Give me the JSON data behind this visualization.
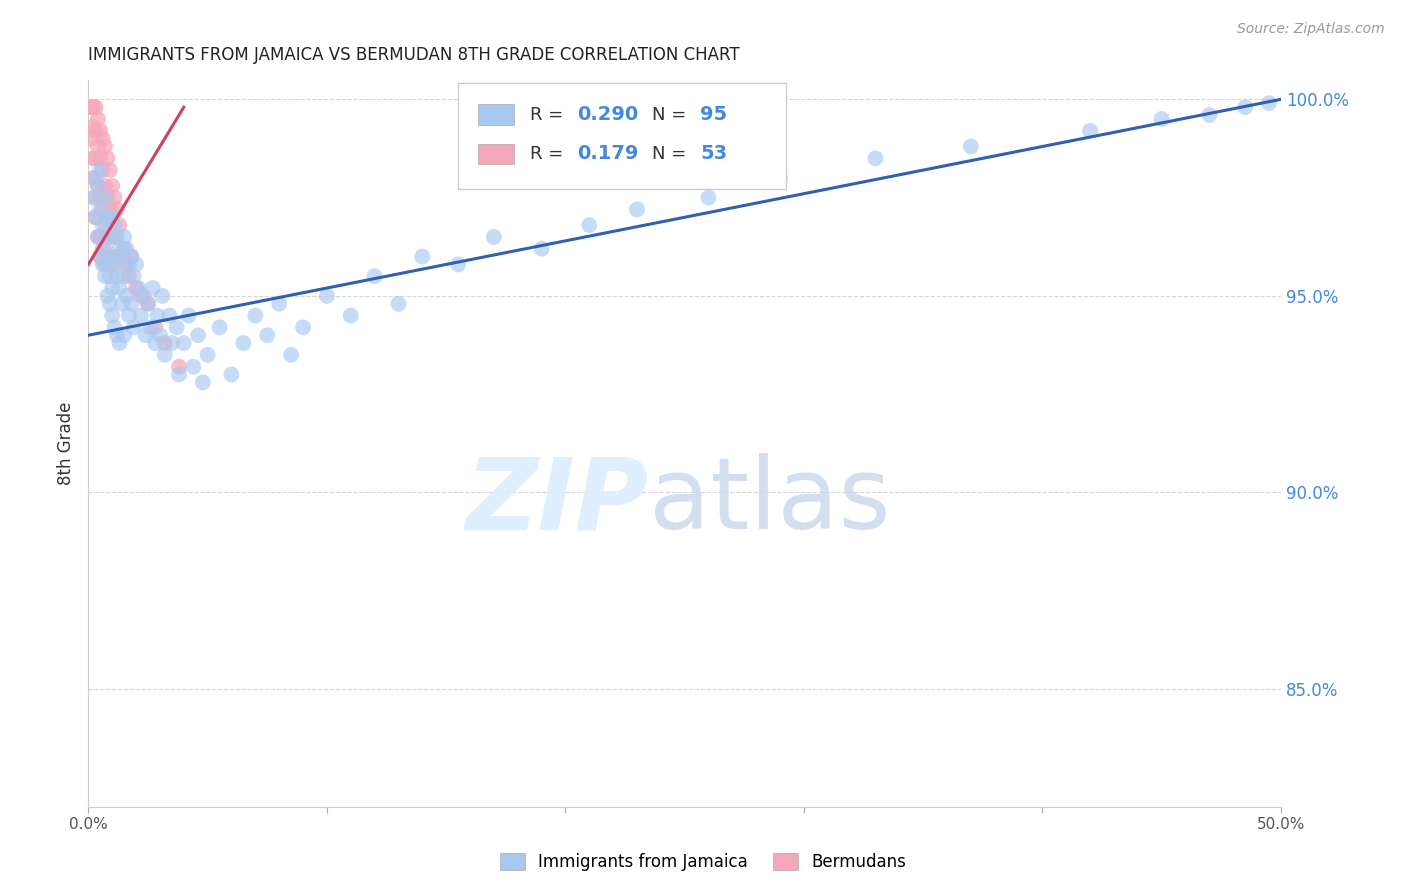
{
  "title": "IMMIGRANTS FROM JAMAICA VS BERMUDAN 8TH GRADE CORRELATION CHART",
  "source": "Source: ZipAtlas.com",
  "ylabel_label": "8th Grade",
  "x_min": 0.0,
  "x_max": 0.5,
  "y_min": 0.82,
  "y_max": 1.005,
  "x_tick_positions": [
    0.0,
    0.1,
    0.2,
    0.3,
    0.4,
    0.5
  ],
  "x_tick_labels": [
    "0.0%",
    "",
    "",
    "",
    "",
    "50.0%"
  ],
  "y_tick_positions": [
    0.85,
    0.9,
    0.95,
    1.0
  ],
  "y_tick_labels": [
    "85.0%",
    "90.0%",
    "95.0%",
    "100.0%"
  ],
  "blue_color": "#a8c8f0",
  "pink_color": "#f5a8bc",
  "blue_line_color": "#3060b0",
  "pink_line_color": "#d04060",
  "R_blue": "0.290",
  "N_blue": "95",
  "R_pink": "0.179",
  "N_pink": "53",
  "legend_label_blue": "Immigrants from Jamaica",
  "legend_label_pink": "Bermudans",
  "blue_scatter_x": [
    0.002,
    0.003,
    0.003,
    0.004,
    0.004,
    0.005,
    0.005,
    0.005,
    0.006,
    0.006,
    0.007,
    0.007,
    0.007,
    0.008,
    0.008,
    0.008,
    0.009,
    0.009,
    0.009,
    0.01,
    0.01,
    0.01,
    0.01,
    0.011,
    0.011,
    0.011,
    0.012,
    0.012,
    0.012,
    0.013,
    0.013,
    0.013,
    0.014,
    0.014,
    0.015,
    0.015,
    0.015,
    0.016,
    0.016,
    0.017,
    0.017,
    0.018,
    0.018,
    0.019,
    0.019,
    0.02,
    0.021,
    0.022,
    0.023,
    0.024,
    0.025,
    0.026,
    0.027,
    0.028,
    0.029,
    0.03,
    0.031,
    0.032,
    0.034,
    0.035,
    0.037,
    0.038,
    0.04,
    0.042,
    0.044,
    0.046,
    0.048,
    0.05,
    0.055,
    0.06,
    0.065,
    0.07,
    0.075,
    0.08,
    0.085,
    0.09,
    0.1,
    0.11,
    0.12,
    0.13,
    0.14,
    0.155,
    0.17,
    0.19,
    0.21,
    0.23,
    0.26,
    0.29,
    0.33,
    0.37,
    0.42,
    0.45,
    0.47,
    0.485,
    0.495
  ],
  "blue_scatter_y": [
    0.975,
    0.98,
    0.97,
    0.978,
    0.965,
    0.982,
    0.96,
    0.972,
    0.968,
    0.958,
    0.975,
    0.962,
    0.955,
    0.97,
    0.958,
    0.95,
    0.965,
    0.955,
    0.948,
    0.97,
    0.96,
    0.952,
    0.945,
    0.968,
    0.958,
    0.942,
    0.965,
    0.955,
    0.94,
    0.962,
    0.952,
    0.938,
    0.96,
    0.948,
    0.965,
    0.955,
    0.94,
    0.962,
    0.95,
    0.958,
    0.945,
    0.96,
    0.948,
    0.955,
    0.942,
    0.958,
    0.952,
    0.945,
    0.95,
    0.94,
    0.948,
    0.942,
    0.952,
    0.938,
    0.945,
    0.94,
    0.95,
    0.935,
    0.945,
    0.938,
    0.942,
    0.93,
    0.938,
    0.945,
    0.932,
    0.94,
    0.928,
    0.935,
    0.942,
    0.93,
    0.938,
    0.945,
    0.94,
    0.948,
    0.935,
    0.942,
    0.95,
    0.945,
    0.955,
    0.948,
    0.96,
    0.958,
    0.965,
    0.962,
    0.968,
    0.972,
    0.975,
    0.98,
    0.985,
    0.988,
    0.992,
    0.995,
    0.996,
    0.998,
    0.999
  ],
  "blue_line_x": [
    0.0,
    0.5
  ],
  "blue_line_y": [
    0.94,
    1.0
  ],
  "pink_scatter_x": [
    0.001,
    0.001,
    0.002,
    0.002,
    0.002,
    0.002,
    0.003,
    0.003,
    0.003,
    0.003,
    0.003,
    0.004,
    0.004,
    0.004,
    0.004,
    0.005,
    0.005,
    0.005,
    0.005,
    0.005,
    0.006,
    0.006,
    0.006,
    0.006,
    0.007,
    0.007,
    0.007,
    0.007,
    0.008,
    0.008,
    0.008,
    0.009,
    0.009,
    0.009,
    0.01,
    0.01,
    0.01,
    0.011,
    0.011,
    0.012,
    0.012,
    0.013,
    0.014,
    0.015,
    0.016,
    0.017,
    0.018,
    0.02,
    0.022,
    0.025,
    0.028,
    0.032,
    0.038
  ],
  "pink_scatter_y": [
    0.99,
    0.998,
    0.985,
    0.993,
    0.998,
    0.98,
    0.992,
    0.985,
    0.975,
    0.998,
    0.97,
    0.995,
    0.988,
    0.978,
    0.965,
    0.992,
    0.985,
    0.975,
    0.965,
    0.96,
    0.99,
    0.982,
    0.972,
    0.962,
    0.988,
    0.978,
    0.968,
    0.958,
    0.985,
    0.975,
    0.965,
    0.982,
    0.972,
    0.96,
    0.978,
    0.97,
    0.958,
    0.975,
    0.965,
    0.972,
    0.96,
    0.968,
    0.96,
    0.962,
    0.958,
    0.955,
    0.96,
    0.952,
    0.95,
    0.948,
    0.942,
    0.938,
    0.932
  ],
  "pink_line_x": [
    0.0,
    0.04
  ],
  "pink_line_y": [
    0.958,
    0.998
  ]
}
